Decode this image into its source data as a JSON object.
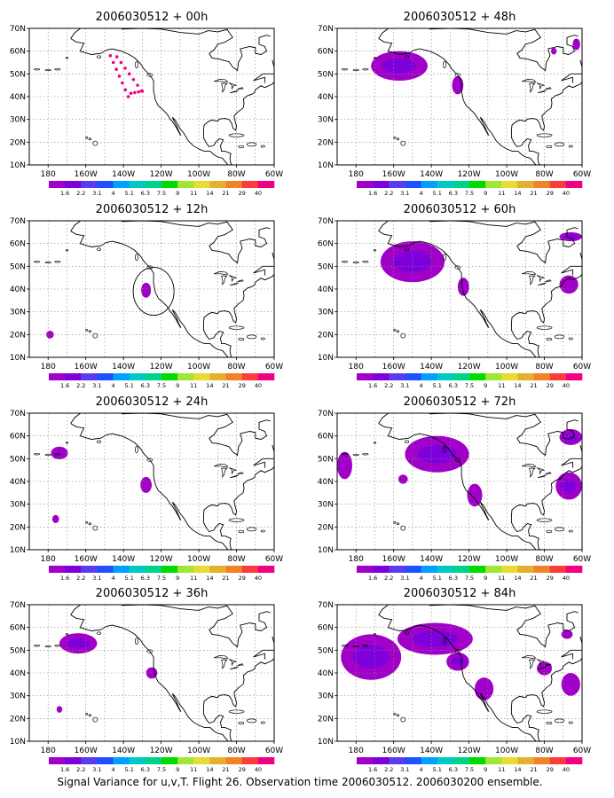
{
  "caption": "Signal Variance for u,v,T. Flight 26. Observation time 2006030512. 2006030200 ensemble.",
  "lon_ticks": [
    "180",
    "160W",
    "140W",
    "120W",
    "100W",
    "80W",
    "60W"
  ],
  "lat_ticks": [
    "70N",
    "60N",
    "50N",
    "40N",
    "30N",
    "20N",
    "10N"
  ],
  "colorbar": {
    "labels": [
      "1.6",
      "2.2",
      "3.1",
      "4",
      "5.1",
      "6.3",
      "7.5",
      "9",
      "11",
      "14",
      "21",
      "29",
      "40"
    ],
    "colors": [
      "#a000c8",
      "#7d00dc",
      "#5a3cf0",
      "#1e50ff",
      "#00a0ff",
      "#00c8c8",
      "#00d28c",
      "#00dc00",
      "#a0e632",
      "#e6dc32",
      "#e6af2d",
      "#f08228",
      "#fa3c3c",
      "#f00082"
    ]
  },
  "panels": [
    {
      "title": "2006030512 + 00h",
      "lead": "00h",
      "blobs": [],
      "dots": true,
      "circle": false
    },
    {
      "title": "2006030512 + 12h",
      "lead": "12h",
      "blobs": [
        {
          "lon": -128,
          "lat": 39.5,
          "rlon": 2.6,
          "rlat": 3.3
        },
        {
          "lon": -179,
          "lat": 20,
          "rlon": 2,
          "rlat": 1.7
        }
      ],
      "dots": false,
      "circle": true
    },
    {
      "title": "2006030512 + 24h",
      "lead": "24h",
      "blobs": [
        {
          "lon": -174,
          "lat": 52.5,
          "rlon": 4.5,
          "rlat": 2.8
        },
        {
          "lon": -128,
          "lat": 38.5,
          "rlon": 3,
          "rlat": 3.5
        },
        {
          "lon": -176,
          "lat": 23.5,
          "rlon": 1.8,
          "rlat": 1.8
        }
      ],
      "dots": false,
      "circle": false
    },
    {
      "title": "2006030512 + 36h",
      "lead": "36h",
      "blobs": [
        {
          "lon": -164,
          "lat": 53,
          "rlon": 10,
          "rlat": 4.5
        },
        {
          "lon": -125,
          "lat": 40,
          "rlon": 3,
          "rlat": 2.5
        },
        {
          "lon": -174,
          "lat": 24,
          "rlon": 1.5,
          "rlat": 1.5
        }
      ],
      "dots": false,
      "circle": false
    },
    {
      "title": "2006030512 + 48h",
      "lead": "48h",
      "blobs": [
        {
          "lon": -157,
          "lat": 53.5,
          "rlon": 15,
          "rlat": 6.5
        },
        {
          "lon": -126,
          "lat": 45,
          "rlon": 3,
          "rlat": 4
        },
        {
          "lon": -63,
          "lat": 63,
          "rlon": 2,
          "rlat": 2.5
        },
        {
          "lon": -75,
          "lat": 60,
          "rlon": 1.5,
          "rlat": 1.5
        }
      ],
      "dots": false,
      "circle": false
    },
    {
      "title": "2006030512 + 60h",
      "lead": "60h",
      "blobs": [
        {
          "lon": -150,
          "lat": 52,
          "rlon": 17,
          "rlat": 9
        },
        {
          "lon": -123,
          "lat": 41,
          "rlon": 3,
          "rlat": 4
        },
        {
          "lon": -67,
          "lat": 42,
          "rlon": 5,
          "rlat": 4
        },
        {
          "lon": -66,
          "lat": 63,
          "rlon": 6,
          "rlat": 2
        }
      ],
      "dots": false,
      "circle": false
    },
    {
      "title": "2006030512 + 72h",
      "lead": "72h",
      "blobs": [
        {
          "lon": -186,
          "lat": 47,
          "rlon": 4,
          "rlat": 6
        },
        {
          "lon": -137,
          "lat": 52,
          "rlon": 17,
          "rlat": 8
        },
        {
          "lon": -117,
          "lat": 34,
          "rlon": 4,
          "rlat": 5
        },
        {
          "lon": -67,
          "lat": 38,
          "rlon": 7,
          "rlat": 6
        },
        {
          "lon": -66,
          "lat": 59.5,
          "rlon": 6,
          "rlat": 3.5
        },
        {
          "lon": -155,
          "lat": 41,
          "rlon": 2.5,
          "rlat": 2
        }
      ],
      "dots": false,
      "circle": false
    },
    {
      "title": "2006030512 + 84h",
      "lead": "84h",
      "blobs": [
        {
          "lon": -172,
          "lat": 47,
          "rlon": 16,
          "rlat": 10
        },
        {
          "lon": -138,
          "lat": 55,
          "rlon": 20,
          "rlat": 7
        },
        {
          "lon": -112,
          "lat": 33,
          "rlon": 5,
          "rlat": 5
        },
        {
          "lon": -80,
          "lat": 42,
          "rlon": 4,
          "rlat": 3
        },
        {
          "lon": -66,
          "lat": 35,
          "rlon": 5,
          "rlat": 5
        },
        {
          "lon": -68,
          "lat": 57,
          "rlon": 3,
          "rlat": 2
        },
        {
          "lon": -126,
          "lat": 45,
          "rlon": 6,
          "rlat": 4
        }
      ],
      "dots": false,
      "circle": false
    }
  ]
}
